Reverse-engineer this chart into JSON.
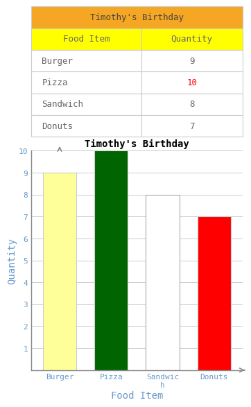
{
  "title": "Timothy's Birthday",
  "categories": [
    "Burger",
    "Pizza",
    "Sandwich",
    "Donuts"
  ],
  "values": [
    9,
    10,
    8,
    7
  ],
  "bar_colors": [
    "#FFFF99",
    "#006400",
    "#FFFFFF",
    "#FF0000"
  ],
  "bar_edgecolors": [
    "#CCCCCC",
    "#CCCCCC",
    "#CCCCCC",
    "#CCCCCC"
  ],
  "xlabel": "Food Item",
  "ylabel": "Quantity",
  "ylim": [
    0,
    10
  ],
  "yticks": [
    1,
    2,
    3,
    4,
    5,
    6,
    7,
    8,
    9,
    10
  ],
  "table_header_bg": "#F5A623",
  "table_subheader_bg": "#FFFF00",
  "table_row_bg": "#FFFFFF",
  "table_header_text": "Timothy's Birthday",
  "table_col1": "Food Item",
  "table_col2": "Quantity",
  "table_rows": [
    [
      "Burger",
      "9"
    ],
    [
      "Pizza",
      "10"
    ],
    [
      "Sandwich",
      "8"
    ],
    [
      "Donuts",
      "7"
    ]
  ],
  "pizza_qty_color": "#FF0000",
  "table_text_color": "#666666",
  "axis_label_color": "#6699CC",
  "tick_label_color": "#6699CC",
  "chart_title_color": "#000000",
  "grid_color": "#CCCCCC",
  "table_border_color": "#CCCCCC",
  "col_split": 0.52
}
